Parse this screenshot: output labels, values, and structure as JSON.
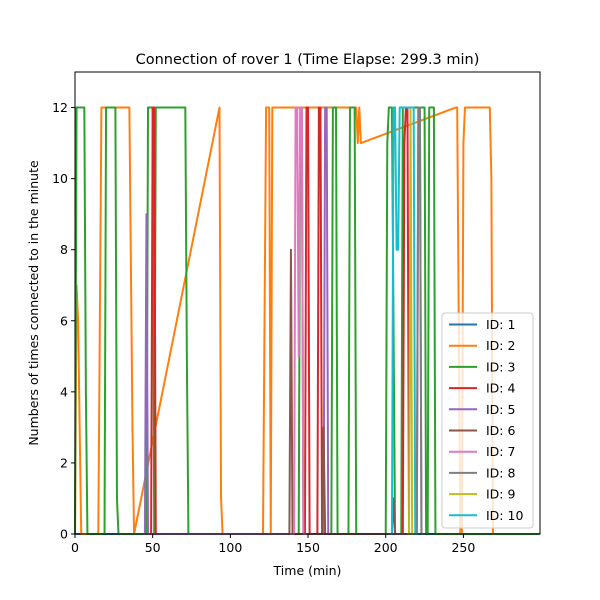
{
  "chart_data": {
    "type": "line",
    "title": "Connection of rover 1 (Time Elapse: 299.3 min)",
    "xlabel": "Time (min)",
    "ylabel": "Numbers of times connected to in the minute",
    "xlim": [
      0,
      299.3
    ],
    "ylim": [
      0,
      13
    ],
    "xticks": [
      0,
      50,
      100,
      150,
      200,
      250
    ],
    "yticks": [
      0,
      2,
      4,
      6,
      8,
      10,
      12
    ],
    "grid": false,
    "legend": {
      "placement": "lower right"
    },
    "series": [
      {
        "name": "ID: 1",
        "color": "#1f77b4",
        "x": [
          0,
          299
        ],
        "y": [
          0,
          0
        ]
      },
      {
        "name": "ID: 2",
        "color": "#ff7f0e",
        "x": [
          0,
          1,
          2,
          4,
          15,
          17,
          35,
          37,
          38,
          93,
          94,
          95,
          121,
          122,
          123,
          125,
          126,
          127,
          181,
          182,
          183,
          184,
          245,
          246,
          247,
          248,
          249,
          250,
          251,
          252,
          266,
          267,
          268,
          269,
          299
        ],
        "y": [
          0,
          7,
          6,
          0,
          0,
          12,
          12,
          3,
          0,
          12,
          1,
          0,
          0,
          6,
          12,
          12,
          0,
          12,
          12,
          11,
          12,
          11,
          12,
          12,
          6,
          0,
          0,
          11,
          12,
          12,
          12,
          12,
          10,
          0,
          0
        ]
      },
      {
        "name": "ID: 3",
        "color": "#2ca02c",
        "x": [
          0,
          1,
          6,
          7,
          8,
          19,
          20,
          21,
          26,
          27,
          28,
          46,
          47,
          48,
          50,
          51,
          52,
          54,
          55,
          56,
          57,
          71,
          72,
          73,
          144,
          145,
          146,
          147,
          165,
          166,
          167,
          168,
          169,
          176,
          177,
          178,
          179,
          180,
          181,
          200,
          201,
          202,
          203,
          204,
          206,
          210,
          211,
          212,
          213,
          224,
          225,
          226,
          227,
          228,
          229,
          230,
          231,
          232,
          299
        ],
        "y": [
          0,
          12,
          12,
          4,
          0,
          0,
          12,
          12,
          12,
          1,
          0,
          0,
          12,
          12,
          12,
          0,
          12,
          12,
          12,
          12,
          12,
          12,
          5,
          0,
          0,
          12,
          12,
          0,
          0,
          12,
          12,
          12,
          0,
          0,
          12,
          12,
          12,
          12,
          0,
          0,
          11,
          12,
          12,
          12,
          0,
          0,
          12,
          12,
          12,
          12,
          12,
          0,
          0,
          12,
          12,
          12,
          12,
          0,
          0
        ]
      },
      {
        "name": "ID: 4",
        "color": "#d62728",
        "x": [
          48,
          49,
          50,
          51,
          52,
          53,
          148,
          149,
          150,
          151,
          152,
          153,
          154,
          155,
          156,
          157,
          158,
          159,
          160,
          205,
          206,
          207,
          208,
          209,
          210,
          211,
          212,
          213,
          214,
          215,
          216
        ],
        "y": [
          0,
          0,
          12,
          12,
          0,
          0,
          0,
          12,
          12,
          0,
          0,
          0,
          0,
          0,
          0,
          12,
          12,
          0,
          0,
          0,
          0,
          0,
          0,
          0,
          0,
          0,
          11,
          12,
          12,
          0,
          0
        ]
      },
      {
        "name": "ID: 5",
        "color": "#9467bd",
        "x": [
          44,
          45,
          46,
          47,
          48,
          160,
          161,
          162,
          163,
          211,
          212,
          213,
          214,
          215,
          216,
          217,
          218,
          219,
          220,
          221,
          222,
          223,
          224
        ],
        "y": [
          0,
          0,
          9,
          0,
          0,
          0,
          12,
          12,
          0,
          0,
          0,
          0,
          0,
          0,
          0,
          0,
          0,
          0,
          0,
          12,
          12,
          0,
          0
        ]
      },
      {
        "name": "ID: 6",
        "color": "#8c564b",
        "x": [
          137,
          138,
          139,
          140,
          141,
          159,
          160,
          161,
          162,
          163,
          204,
          205,
          206,
          207
        ],
        "y": [
          0,
          0,
          8,
          0,
          0,
          0,
          3,
          0,
          0,
          0,
          0,
          1,
          0,
          0
        ]
      },
      {
        "name": "ID: 7",
        "color": "#e377c2",
        "x": [
          138,
          139,
          140,
          141,
          142,
          143,
          144,
          145,
          146,
          147,
          148,
          149
        ],
        "y": [
          0,
          0,
          0,
          0,
          12,
          12,
          5,
          12,
          12,
          0,
          0,
          0
        ]
      },
      {
        "name": "ID: 8",
        "color": "#7f7f7f",
        "x": [
          218,
          219,
          220,
          221,
          222,
          223,
          224,
          225
        ],
        "y": [
          0,
          0,
          0,
          12,
          12,
          0,
          0,
          0
        ]
      },
      {
        "name": "ID: 9",
        "color": "#bcbd22",
        "x": [
          214,
          215,
          216,
          217,
          218
        ],
        "y": [
          0,
          0,
          12,
          0,
          0
        ]
      },
      {
        "name": "ID: 10",
        "color": "#17becf",
        "x": [
          203,
          204,
          205,
          206,
          207,
          208,
          209,
          210,
          211,
          212,
          213,
          214,
          215,
          216,
          217,
          218,
          219,
          220,
          221
        ],
        "y": [
          0,
          0,
          12,
          12,
          8,
          8,
          12,
          12,
          12,
          12,
          12,
          12,
          12,
          12,
          12,
          12,
          0,
          0,
          0
        ]
      }
    ]
  }
}
